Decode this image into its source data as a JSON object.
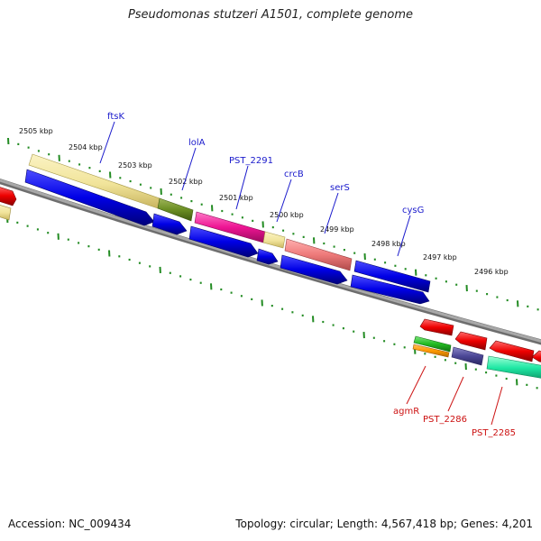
{
  "title": "Pseudomonas stutzeri A1501, complete genome",
  "footer": {
    "accession": "Accession: NC_009434",
    "stats": "Topology: circular; Length: 4,567,418 bp; Genes: 4,201"
  },
  "scale_labels": [
    "2505 kbp",
    "2504 kbp",
    "2503 kbp",
    "2502 kbp",
    "2501 kbp",
    "2500 kbp",
    "2499 kbp",
    "2498 kbp",
    "2497 kbp",
    "2496 kbp"
  ],
  "forward_gene_labels": [
    "ftsK",
    "lolA",
    "PST_2291",
    "crcB",
    "serS",
    "cysG"
  ],
  "reverse_gene_labels": [
    "agmR",
    "PST_2286",
    "PST_2285"
  ],
  "colors": {
    "forward_label": "#1a1acc",
    "reverse_label": "#cc1111",
    "cds_blue": "#0000e6",
    "cds_red": "#ee0000",
    "backbone": "#888888",
    "tick": "#228b22"
  }
}
